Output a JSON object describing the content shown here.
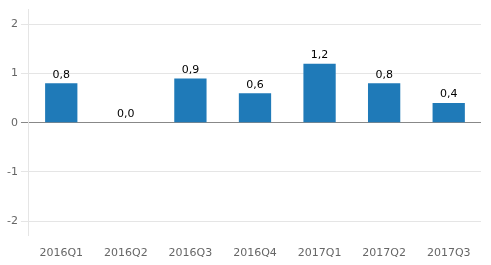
{
  "chart_data": {
    "type": "bar",
    "categories": [
      "2016Q1",
      "2016Q2",
      "2016Q3",
      "2016Q4",
      "2017Q1",
      "2017Q2",
      "2017Q3"
    ],
    "values": [
      0.8,
      0.0,
      0.9,
      0.6,
      1.2,
      0.8,
      0.4
    ],
    "value_labels": [
      "0,8",
      "0,0",
      "0,9",
      "0,6",
      "1,2",
      "0,8",
      "0,4"
    ],
    "data_labels": true,
    "color": "#1f7ab8",
    "ylim": [
      -2.3,
      2.3
    ],
    "yticks": [
      -2,
      -1,
      0,
      1,
      2
    ],
    "grid": true
  }
}
